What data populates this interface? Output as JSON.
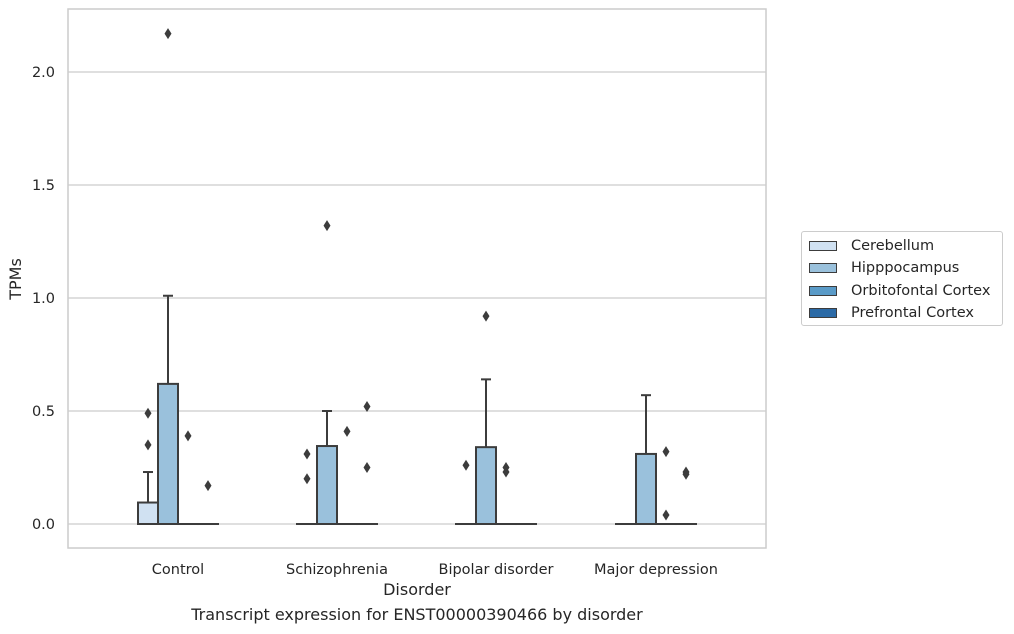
{
  "chart_data": {
    "type": "box",
    "xlabel": "Disorder",
    "ylabel": "TPMs",
    "caption": "Transcript expression for ENST00000390466 by disorder",
    "categories": [
      "Control",
      "Schizophrenia",
      "Bipolar disorder",
      "Major depression"
    ],
    "ylim": [
      -0.1,
      2.28
    ],
    "yticks": [
      "0.0",
      "0.5",
      "1.0",
      "1.5",
      "2.0"
    ],
    "ytick_values": [
      0.0,
      0.5,
      1.0,
      1.5,
      2.0
    ],
    "grid": true,
    "legend_position": "right",
    "series": [
      {
        "name": "Cerebellum",
        "color": "#d0e1f2",
        "boxes": [
          {
            "q1": 0.0,
            "median": 0.0,
            "q3": 0.095,
            "whisker_low": 0.0,
            "whisker_high": 0.23,
            "outliers": [
              0.35,
              0.49
            ]
          },
          {
            "q1": 0.0,
            "median": 0.0,
            "q3": 0.0,
            "whisker_low": 0.0,
            "whisker_high": 0.0,
            "outliers": [
              0.2,
              0.31
            ]
          },
          {
            "q1": 0.0,
            "median": 0.0,
            "q3": 0.0,
            "whisker_low": 0.0,
            "whisker_high": 0.0,
            "outliers": [
              0.26
            ]
          },
          {
            "q1": 0.0,
            "median": 0.0,
            "q3": 0.0,
            "whisker_low": 0.0,
            "whisker_high": 0.0,
            "outliers": []
          }
        ]
      },
      {
        "name": "Hipppocampus",
        "color": "#9ac1dc",
        "boxes": [
          {
            "q1": 0.0,
            "median": 0.0,
            "q3": 0.62,
            "whisker_low": 0.0,
            "whisker_high": 1.01,
            "outliers": [
              2.17
            ]
          },
          {
            "q1": 0.0,
            "median": 0.0,
            "q3": 0.345,
            "whisker_low": 0.0,
            "whisker_high": 0.5,
            "outliers": [
              1.32
            ]
          },
          {
            "q1": 0.0,
            "median": 0.0,
            "q3": 0.34,
            "whisker_low": 0.0,
            "whisker_high": 0.64,
            "outliers": [
              0.92
            ]
          },
          {
            "q1": 0.0,
            "median": 0.0,
            "q3": 0.31,
            "whisker_low": 0.0,
            "whisker_high": 0.57,
            "outliers": []
          }
        ]
      },
      {
        "name": "Orbitofontal Cortex",
        "color": "#5a9bc8",
        "boxes": [
          {
            "q1": 0.0,
            "median": 0.0,
            "q3": 0.0,
            "whisker_low": 0.0,
            "whisker_high": 0.0,
            "outliers": [
              0.39
            ]
          },
          {
            "q1": 0.0,
            "median": 0.0,
            "q3": 0.0,
            "whisker_low": 0.0,
            "whisker_high": 0.0,
            "outliers": [
              0.41
            ]
          },
          {
            "q1": 0.0,
            "median": 0.0,
            "q3": 0.0,
            "whisker_low": 0.0,
            "whisker_high": 0.0,
            "outliers": [
              0.23,
              0.25
            ]
          },
          {
            "q1": 0.0,
            "median": 0.0,
            "q3": 0.0,
            "whisker_low": 0.0,
            "whisker_high": 0.0,
            "outliers": [
              0.04,
              0.32
            ]
          }
        ]
      },
      {
        "name": "Prefrontal Cortex",
        "color": "#2b6aa6",
        "boxes": [
          {
            "q1": 0.0,
            "median": 0.0,
            "q3": 0.0,
            "whisker_low": 0.0,
            "whisker_high": 0.0,
            "outliers": [
              0.17
            ]
          },
          {
            "q1": 0.0,
            "median": 0.0,
            "q3": 0.0,
            "whisker_low": 0.0,
            "whisker_high": 0.0,
            "outliers": [
              0.25,
              0.52
            ]
          },
          {
            "q1": 0.0,
            "median": 0.0,
            "q3": 0.0,
            "whisker_low": 0.0,
            "whisker_high": 0.0,
            "outliers": []
          },
          {
            "q1": 0.0,
            "median": 0.0,
            "q3": 0.0,
            "whisker_low": 0.0,
            "whisker_high": 0.0,
            "outliers": [
              0.22,
              0.23
            ]
          }
        ]
      }
    ]
  }
}
